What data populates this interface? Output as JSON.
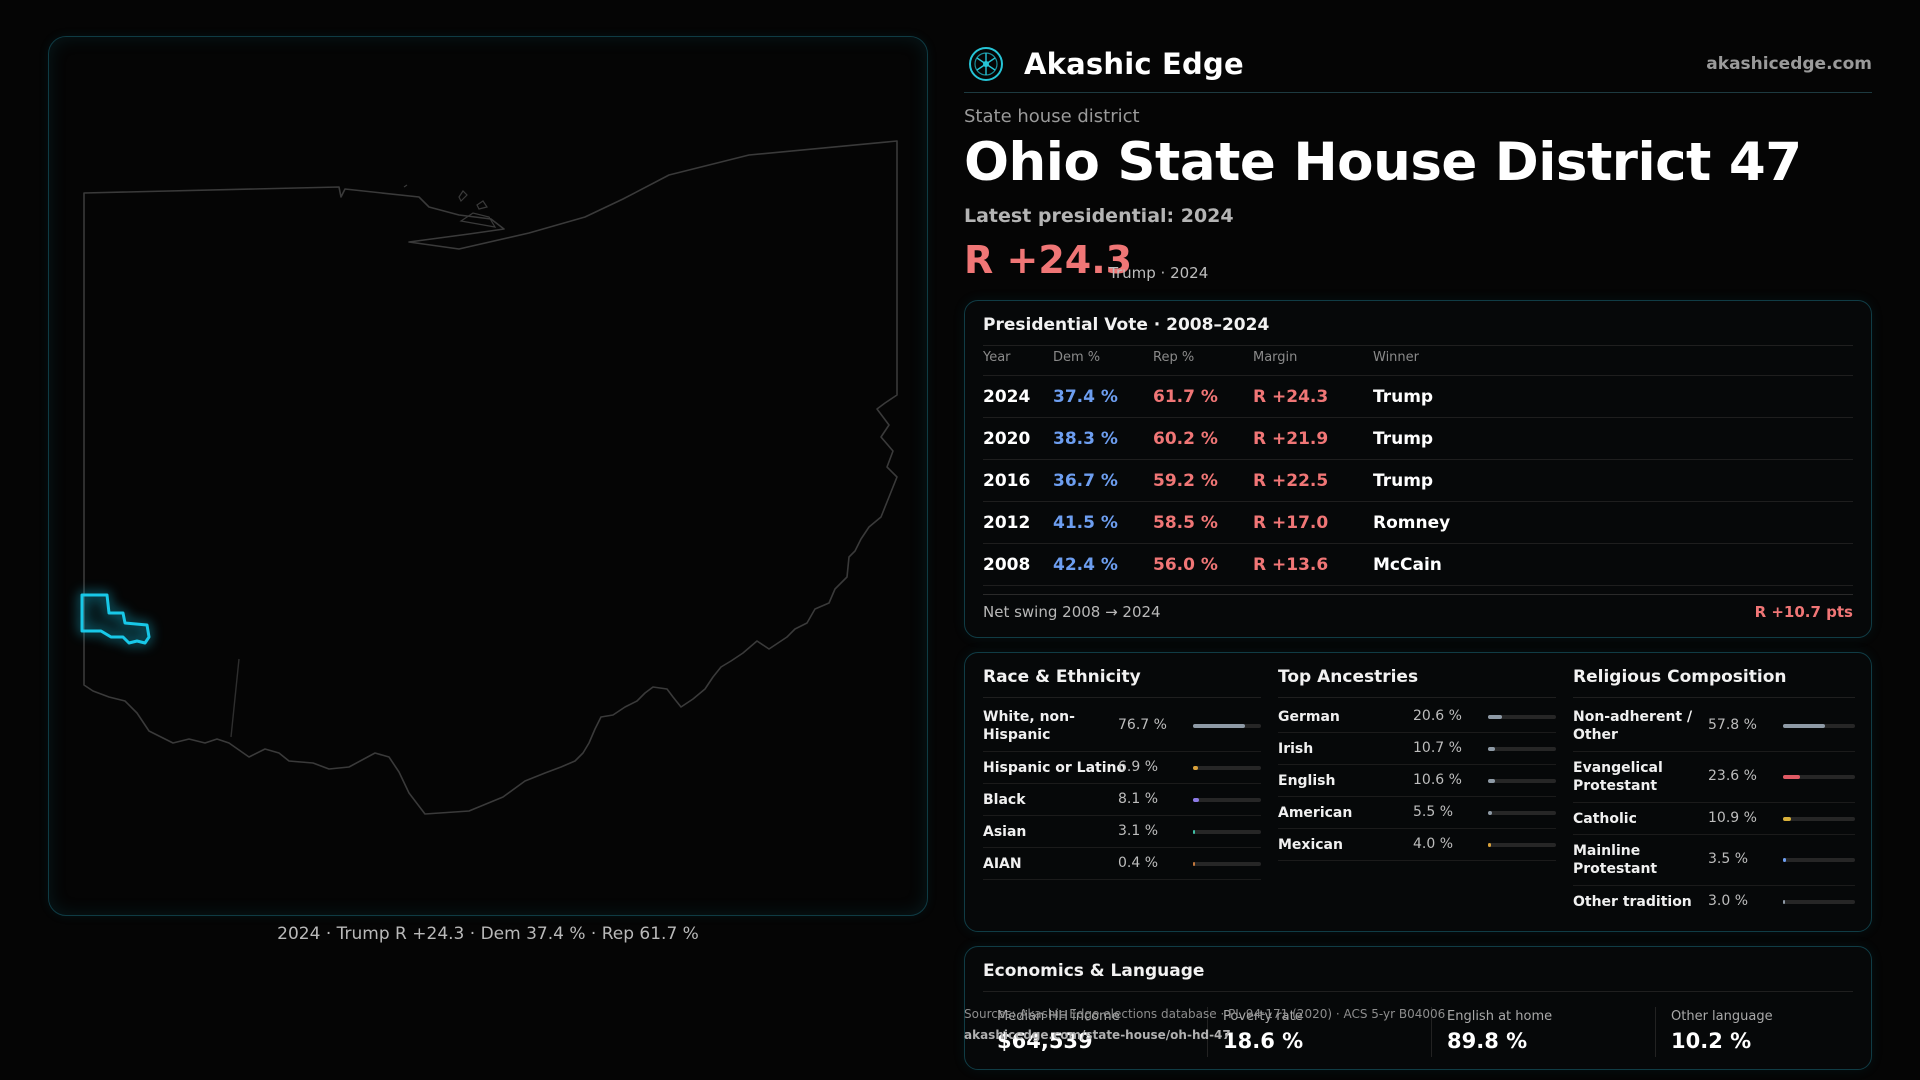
{
  "brand": {
    "name": "Akashic Edge",
    "url": "akashicedge.com",
    "logo_icon": "akashic-edge-logo-icon"
  },
  "header": {
    "kicker": "State house district",
    "title": "Ohio State House District 47",
    "latest": "Latest presidential: 2024",
    "margin": "R +24.3",
    "margin_sub": "Trump · 2024"
  },
  "map": {
    "caption": "2024 · Trump R +24.3 · Dem 37.4 % · Rep 61.7 %",
    "state_outline_color": "#3a3a3a",
    "district_color": "#18c8e8"
  },
  "presidential": {
    "title": "Presidential Vote · 2008–2024",
    "columns": [
      "Year",
      "Dem %",
      "Rep %",
      "Margin",
      "Winner"
    ],
    "rows": [
      {
        "year": "2024",
        "dem": "37.4 %",
        "rep": "61.7 %",
        "margin": "R +24.3",
        "winner": "Trump"
      },
      {
        "year": "2020",
        "dem": "38.3 %",
        "rep": "60.2 %",
        "margin": "R +21.9",
        "winner": "Trump"
      },
      {
        "year": "2016",
        "dem": "36.7 %",
        "rep": "59.2 %",
        "margin": "R +22.5",
        "winner": "Trump"
      },
      {
        "year": "2012",
        "dem": "41.5 %",
        "rep": "58.5 %",
        "margin": "R +17.0",
        "winner": "Romney"
      },
      {
        "year": "2008",
        "dem": "42.4 %",
        "rep": "56.0 %",
        "margin": "R +13.6",
        "winner": "McCain"
      }
    ],
    "swing_label": "Net swing 2008 → 2024",
    "swing_value": "R +10.7 pts",
    "colors": {
      "dem": "#6d9ef0",
      "rep": "#f07676"
    }
  },
  "demographics": {
    "race": {
      "title": "Race & Ethnicity",
      "items": [
        {
          "label": "White, non-Hispanic",
          "value": "76.7 %",
          "pct": 76.7,
          "color": "#8e9aa6"
        },
        {
          "label": "Hispanic or Latino",
          "value": "6.9 %",
          "pct": 6.9,
          "color": "#d9a13a"
        },
        {
          "label": "Black",
          "value": "8.1 %",
          "pct": 8.1,
          "color": "#8c7ae6"
        },
        {
          "label": "Asian",
          "value": "3.1 %",
          "pct": 3.1,
          "color": "#3fbfa5"
        },
        {
          "label": "AIAN",
          "value": "0.4 %",
          "pct": 0.4,
          "color": "#c2773c"
        }
      ]
    },
    "ancestry": {
      "title": "Top Ancestries",
      "items": [
        {
          "label": "German",
          "value": "20.6 %",
          "pct": 20.6,
          "color": "#8e9aa6"
        },
        {
          "label": "Irish",
          "value": "10.7 %",
          "pct": 10.7,
          "color": "#8e9aa6"
        },
        {
          "label": "English",
          "value": "10.6 %",
          "pct": 10.6,
          "color": "#8e9aa6"
        },
        {
          "label": "American",
          "value": "5.5 %",
          "pct": 5.5,
          "color": "#8e9aa6"
        },
        {
          "label": "Mexican",
          "value": "4.0 %",
          "pct": 4.0,
          "color": "#d9a13a"
        }
      ]
    },
    "religion": {
      "title": "Religious Composition",
      "items": [
        {
          "label": "Non-adherent / Other",
          "value": "57.8 %",
          "pct": 57.8,
          "color": "#8e9aa6"
        },
        {
          "label": "Evangelical Protestant",
          "value": "23.6 %",
          "pct": 23.6,
          "color": "#e05a64"
        },
        {
          "label": "Catholic",
          "value": "10.9 %",
          "pct": 10.9,
          "color": "#d9b13a"
        },
        {
          "label": "Mainline Protestant",
          "value": "3.5 %",
          "pct": 3.5,
          "color": "#6d9ef0"
        },
        {
          "label": "Other tradition",
          "value": "3.0 %",
          "pct": 3.0,
          "color": "#8e9aa6"
        }
      ]
    }
  },
  "economics": {
    "title": "Economics & Language",
    "stats": [
      {
        "label": "Median HH income",
        "value": "$64,539"
      },
      {
        "label": "Poverty rate",
        "value": "18.6 %"
      },
      {
        "label": "English at home",
        "value": "89.8 %"
      },
      {
        "label": "Other language",
        "value": "10.2 %"
      }
    ]
  },
  "sources": {
    "line1": "Sources: Akashic Edge elections database · PL 94-171 (2020) · ACS 5-yr B04006",
    "line2": "akashicedge.com/state-house/oh-hd-47"
  }
}
